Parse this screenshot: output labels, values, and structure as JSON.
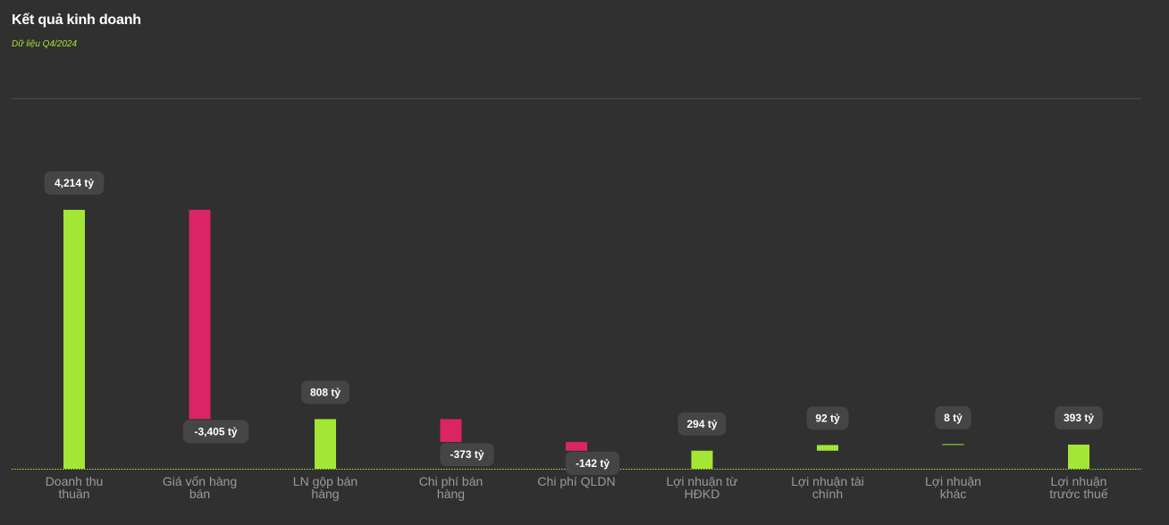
{
  "header": {
    "title": "Kết quả kinh doanh",
    "subtitle": "Dữ liệu Q4/2024"
  },
  "colors": {
    "positive": "#a3e635",
    "negative": "#db2463",
    "background": "#303030",
    "label_bg": "#454545"
  },
  "chart_data": {
    "type": "waterfall",
    "unit": "tỷ",
    "categories": [
      [
        "Doanh thu",
        "thuần"
      ],
      [
        "Giá vốn hàng",
        "bán"
      ],
      [
        "LN gộp bán",
        "hàng"
      ],
      [
        "Chi phí bán",
        "hàng"
      ],
      [
        "Chi phí QLDN"
      ],
      [
        "Lợi nhuận từ",
        "HĐKD"
      ],
      [
        "Lợi nhuận tài",
        "chính"
      ],
      [
        "Lợi nhuận",
        "khác"
      ],
      [
        "Lợi nhuận",
        "trước thuế"
      ]
    ],
    "values": [
      4214,
      -3405,
      808,
      -373,
      -142,
      294,
      92,
      8,
      393
    ],
    "labels": [
      "4,214 tỷ",
      "-3,405 tỷ",
      "808 tỷ",
      "-373 tỷ",
      "-142 tỷ",
      "294 tỷ",
      "92 tỷ",
      "8 tỷ",
      "393 tỷ"
    ],
    "bar_kind": [
      "total",
      "delta",
      "total",
      "delta",
      "delta",
      "total",
      "delta",
      "delta",
      "total"
    ],
    "grid": true
  }
}
